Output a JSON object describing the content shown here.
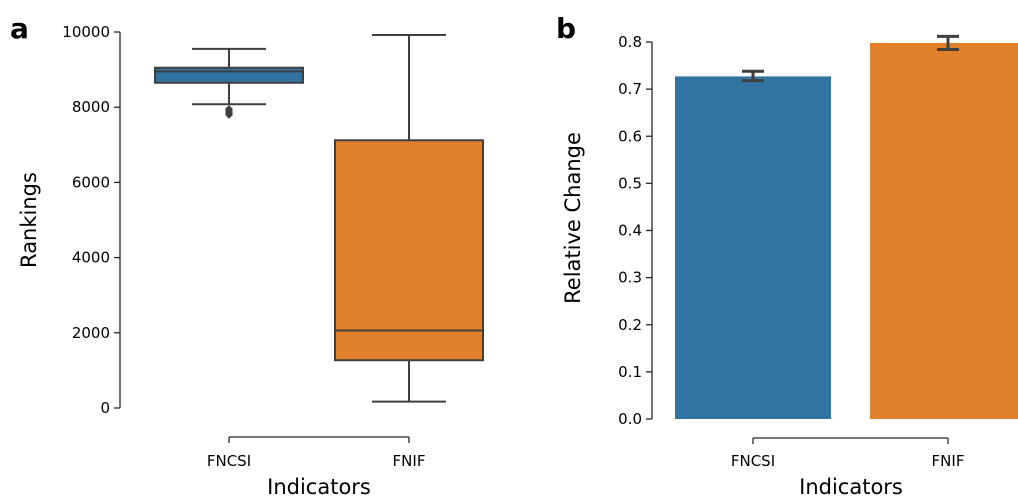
{
  "chart_data": [
    {
      "panel_label": "a",
      "type": "box",
      "categories": [
        "FNCSI",
        "FNIF"
      ],
      "xlabel": "Indicators",
      "ylabel": "Rankings",
      "ylim": [
        0,
        10000
      ],
      "yticks": [
        "0",
        "2000",
        "4000",
        "6000",
        "8000",
        "10000"
      ],
      "boxes": [
        {
          "category": "FNCSI",
          "whisker_low": 8080,
          "q1": 8650,
          "median": 8950,
          "q3": 9050,
          "whisker_high": 9550,
          "outliers": [
            7800,
            7850,
            7900,
            7950
          ],
          "color": "#3274a1"
        },
        {
          "category": "FNIF",
          "whisker_low": 170,
          "q1": 1270,
          "median": 2060,
          "q3": 7120,
          "whisker_high": 9920,
          "outliers": [],
          "color": "#e1812c"
        }
      ]
    },
    {
      "panel_label": "b",
      "type": "bar",
      "categories": [
        "FNCSI",
        "FNIF"
      ],
      "values": [
        0.727,
        0.798
      ],
      "error": [
        [
          0.718,
          0.738
        ],
        [
          0.784,
          0.812
        ]
      ],
      "colors": [
        "#3274a1",
        "#e1812c"
      ],
      "xlabel": "Indicators",
      "ylabel": "Relative Change",
      "ylim": [
        0,
        0.8
      ],
      "yticks": [
        "0.0",
        "0.1",
        "0.2",
        "0.3",
        "0.4",
        "0.5",
        "0.6",
        "0.7",
        "0.8"
      ]
    }
  ]
}
